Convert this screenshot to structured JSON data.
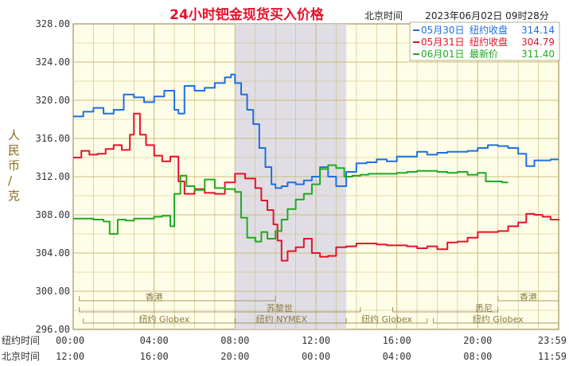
{
  "header": {
    "title": "24小时钯金现货买入价格",
    "timezone_label": "北京时间",
    "datetime": "2023年06月02日 09时28分"
  },
  "yaxis_label": "人民币/克",
  "legend": [
    {
      "date": "05月30日",
      "label": "纽约收盘",
      "value": "314.14",
      "color": "#1e6fe0"
    },
    {
      "date": "05月31日",
      "label": "纽约收盘",
      "value": "304.79",
      "color": "#e8102a"
    },
    {
      "date": "06月01日",
      "label": "最新价",
      "value": "311.40",
      "color": "#1faa1f"
    }
  ],
  "xaxis": {
    "row1_label": "纽约时间",
    "row2_label": "北京时间",
    "ny_ticks": [
      "00:00",
      "04:00",
      "08:00",
      "12:00",
      "16:00",
      "20:00",
      "23:59"
    ],
    "bj_ticks": [
      "12:00",
      "16:00",
      "20:00",
      "00:00",
      "04:00",
      "08:00",
      "11:59"
    ]
  },
  "sessions": [
    {
      "name": "香港"
    },
    {
      "name": "苏黎世"
    },
    {
      "name": "纽约 Globex"
    },
    {
      "name": "纽约 NYMEX"
    },
    {
      "name": "纽约 Globex"
    },
    {
      "name": "悉尼"
    },
    {
      "name": "香港"
    },
    {
      "name": "纽约 Globex"
    }
  ],
  "chart_data": {
    "type": "line",
    "x_unit": "hours after 00:00 New York time",
    "xlim": [
      0,
      24
    ],
    "ylim": [
      296,
      328
    ],
    "yticks": [
      "328.00",
      "324.00",
      "320.00",
      "316.00",
      "312.00",
      "308.00",
      "304.00",
      "300.00",
      "296.00"
    ],
    "yticks_values": [
      328,
      324,
      320,
      316,
      312,
      308,
      304,
      300,
      296
    ],
    "grid": true,
    "shaded_band_hours": [
      8,
      13.5
    ],
    "series": [
      {
        "name": "05月30日",
        "color": "#1e6fe0",
        "points": [
          [
            0,
            318.3
          ],
          [
            0.5,
            318.8
          ],
          [
            1,
            319.2
          ],
          [
            1.5,
            318.6
          ],
          [
            2,
            319.0
          ],
          [
            2.5,
            320.6
          ],
          [
            3,
            320.3
          ],
          [
            3.5,
            319.8
          ],
          [
            4,
            320.4
          ],
          [
            4.5,
            321.0
          ],
          [
            5,
            319.0
          ],
          [
            5.2,
            318.6
          ],
          [
            5.5,
            321.5
          ],
          [
            6,
            321.0
          ],
          [
            6.5,
            321.3
          ],
          [
            7,
            321.8
          ],
          [
            7.5,
            322.4
          ],
          [
            7.8,
            322.7
          ],
          [
            8,
            321.8
          ],
          [
            8.3,
            320.6
          ],
          [
            8.6,
            319.0
          ],
          [
            8.9,
            317.5
          ],
          [
            9.2,
            315.0
          ],
          [
            9.5,
            313.0
          ],
          [
            9.8,
            311.2
          ],
          [
            10,
            310.8
          ],
          [
            10.3,
            311.0
          ],
          [
            10.6,
            311.4
          ],
          [
            11,
            311.2
          ],
          [
            11.4,
            311.6
          ],
          [
            11.8,
            312.0
          ],
          [
            12.2,
            313.0
          ],
          [
            12.6,
            312.0
          ],
          [
            13,
            311.0
          ],
          [
            13.5,
            312.5
          ],
          [
            14,
            313.4
          ],
          [
            14.5,
            313.5
          ],
          [
            15,
            313.8
          ],
          [
            15.5,
            313.6
          ],
          [
            16,
            314.1
          ],
          [
            16.5,
            314.1
          ],
          [
            17,
            314.6
          ],
          [
            17.5,
            314.3
          ],
          [
            18,
            314.5
          ],
          [
            18.5,
            314.6
          ],
          [
            19,
            314.6
          ],
          [
            19.5,
            314.7
          ],
          [
            20,
            315.0
          ],
          [
            20.5,
            315.3
          ],
          [
            21,
            315.2
          ],
          [
            21.5,
            315.0
          ],
          [
            22,
            314.4
          ],
          [
            22.4,
            313.1
          ],
          [
            22.8,
            313.7
          ],
          [
            23.2,
            313.7
          ],
          [
            23.6,
            313.8
          ],
          [
            24,
            313.8
          ]
        ]
      },
      {
        "name": "05月31日",
        "color": "#e8102a",
        "points": [
          [
            0,
            314.0
          ],
          [
            0.4,
            314.7
          ],
          [
            0.8,
            314.3
          ],
          [
            1.2,
            314.4
          ],
          [
            1.6,
            314.9
          ],
          [
            2,
            315.3
          ],
          [
            2.4,
            314.8
          ],
          [
            2.8,
            316.4
          ],
          [
            3,
            318.6
          ],
          [
            3.3,
            316.4
          ],
          [
            3.6,
            315.3
          ],
          [
            4,
            314.2
          ],
          [
            4.4,
            313.6
          ],
          [
            4.8,
            314.1
          ],
          [
            5.2,
            311.5
          ],
          [
            5.5,
            310.2
          ],
          [
            6,
            310.7
          ],
          [
            6.5,
            310.3
          ],
          [
            7,
            310.2
          ],
          [
            7.5,
            311.4
          ],
          [
            8,
            312.3
          ],
          [
            8.5,
            311.8
          ],
          [
            9,
            310.8
          ],
          [
            9.3,
            309.5
          ],
          [
            9.6,
            308.5
          ],
          [
            9.9,
            307.0
          ],
          [
            10.1,
            305.3
          ],
          [
            10.3,
            303.2
          ],
          [
            10.6,
            304.2
          ],
          [
            11,
            304.6
          ],
          [
            11.4,
            305.5
          ],
          [
            11.8,
            304.0
          ],
          [
            12.2,
            303.6
          ],
          [
            12.6,
            303.7
          ],
          [
            13,
            304.6
          ],
          [
            13.5,
            304.7
          ],
          [
            14,
            305.0
          ],
          [
            14.5,
            305.0
          ],
          [
            15,
            304.9
          ],
          [
            15.5,
            304.8
          ],
          [
            16,
            304.8
          ],
          [
            16.5,
            304.7
          ],
          [
            17,
            304.5
          ],
          [
            17.5,
            304.7
          ],
          [
            18,
            304.4
          ],
          [
            18.5,
            305.1
          ],
          [
            19,
            305.2
          ],
          [
            19.5,
            305.6
          ],
          [
            20,
            306.2
          ],
          [
            20.5,
            306.2
          ],
          [
            21,
            306.3
          ],
          [
            21.5,
            306.8
          ],
          [
            22,
            307.2
          ],
          [
            22.4,
            308.1
          ],
          [
            22.8,
            308.0
          ],
          [
            23.2,
            307.8
          ],
          [
            23.6,
            307.5
          ],
          [
            24,
            307.4
          ]
        ]
      },
      {
        "name": "06月01日",
        "color": "#1faa1f",
        "points": [
          [
            0,
            307.6
          ],
          [
            0.5,
            307.6
          ],
          [
            1,
            307.5
          ],
          [
            1.5,
            307.3
          ],
          [
            1.8,
            306.0
          ],
          [
            2.2,
            307.5
          ],
          [
            2.6,
            307.4
          ],
          [
            3,
            307.6
          ],
          [
            3.5,
            307.6
          ],
          [
            4,
            307.8
          ],
          [
            4.4,
            307.9
          ],
          [
            4.8,
            306.8
          ],
          [
            5,
            310.2
          ],
          [
            5.3,
            312.1
          ],
          [
            5.6,
            311.0
          ],
          [
            6,
            310.6
          ],
          [
            6.5,
            311.7
          ],
          [
            7,
            310.8
          ],
          [
            7.5,
            310.7
          ],
          [
            8,
            310.4
          ],
          [
            8.3,
            307.7
          ],
          [
            8.6,
            305.6
          ],
          [
            9,
            305.2
          ],
          [
            9.3,
            306.2
          ],
          [
            9.6,
            305.5
          ],
          [
            10,
            306.3
          ],
          [
            10.3,
            307.5
          ],
          [
            10.6,
            308.6
          ],
          [
            11,
            309.6
          ],
          [
            11.4,
            310.2
          ],
          [
            11.8,
            311.2
          ],
          [
            12.2,
            312.8
          ],
          [
            12.6,
            313.2
          ],
          [
            13,
            312.9
          ],
          [
            13.4,
            312.0
          ],
          [
            13.8,
            312.1
          ],
          [
            14.2,
            312.2
          ],
          [
            14.6,
            312.3
          ],
          [
            15,
            312.3
          ],
          [
            15.5,
            312.3
          ],
          [
            16,
            312.4
          ],
          [
            16.5,
            312.5
          ],
          [
            17,
            312.6
          ],
          [
            17.5,
            312.6
          ],
          [
            18,
            312.5
          ],
          [
            18.5,
            312.4
          ],
          [
            19,
            312.5
          ],
          [
            19.5,
            312.2
          ],
          [
            20,
            312.4
          ],
          [
            20.4,
            311.5
          ],
          [
            20.8,
            311.5
          ],
          [
            21.2,
            311.4
          ],
          [
            21.5,
            311.4
          ]
        ]
      }
    ]
  }
}
